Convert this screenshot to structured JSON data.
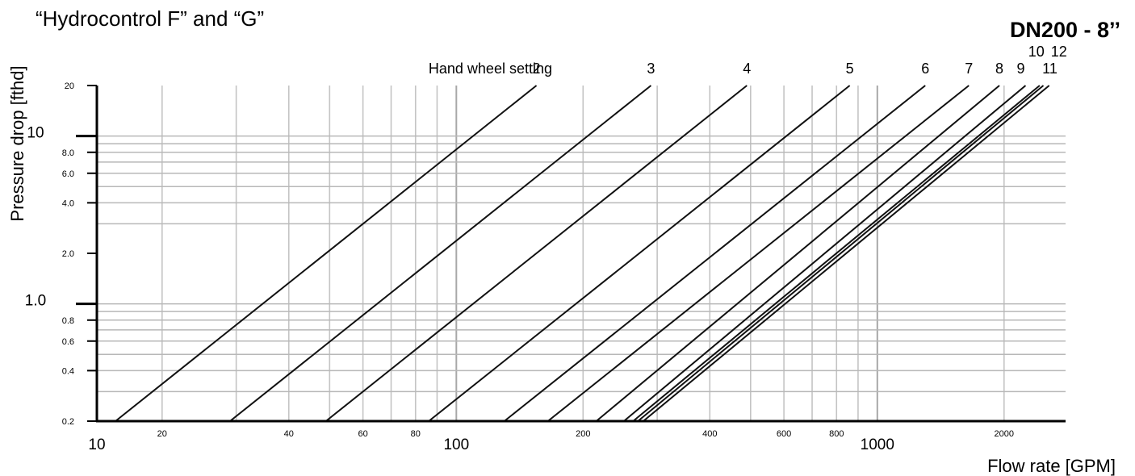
{
  "header": {
    "title": "“Hydrocontrol F” and “G”",
    "model": "DN200 - 8’’"
  },
  "chart_data": {
    "type": "line",
    "title": "“Hydrocontrol F” and “G”",
    "subtitle": "DN200 - 8’’",
    "xlabel": "Flow rate [GPM]",
    "ylabel": "Pressure drop [fthd]",
    "xscale": "log",
    "yscale": "log",
    "xlim": [
      14,
      2800
    ],
    "ylim": [
      0.2,
      20
    ],
    "grid": true,
    "x_ticks_major": [
      {
        "value": 10,
        "label": "10"
      },
      {
        "value": 100,
        "label": "100"
      },
      {
        "value": 1000,
        "label": "1000"
      }
    ],
    "x_ticks_minor": [
      {
        "value": 20,
        "label": "20"
      },
      {
        "value": 40,
        "label": "40"
      },
      {
        "value": 60,
        "label": "60"
      },
      {
        "value": 80,
        "label": "80"
      },
      {
        "value": 200,
        "label": "200"
      },
      {
        "value": 400,
        "label": "400"
      },
      {
        "value": 600,
        "label": "600"
      },
      {
        "value": 800,
        "label": "800"
      },
      {
        "value": 2000,
        "label": "2000"
      }
    ],
    "x_gridlines": [
      20,
      30,
      40,
      50,
      60,
      70,
      80,
      90,
      200,
      300,
      400,
      500,
      600,
      700,
      800,
      900,
      2000
    ],
    "y_ticks": [
      {
        "value": 20,
        "label": "20",
        "major": false
      },
      {
        "value": 10,
        "label": "10",
        "major": true
      },
      {
        "value": 8,
        "label": "8.0",
        "major": false
      },
      {
        "value": 6,
        "label": "6.0",
        "major": false
      },
      {
        "value": 4,
        "label": "4.0",
        "major": false
      },
      {
        "value": 2,
        "label": "2.0",
        "major": false
      },
      {
        "value": 1,
        "label": "1.0",
        "major": true
      },
      {
        "value": 0.8,
        "label": "0.8",
        "major": false
      },
      {
        "value": 0.6,
        "label": "0.6",
        "major": false
      },
      {
        "value": 0.4,
        "label": "0.4",
        "major": false
      },
      {
        "value": 0.2,
        "label": "0.2",
        "major": false
      }
    ],
    "y_gridlines": [
      10,
      9,
      8,
      7,
      6,
      5,
      4,
      3,
      1,
      0.9,
      0.8,
      0.7,
      0.6,
      0.5,
      0.4,
      0.3
    ],
    "series_label_title": "Hand wheel setting",
    "series": [
      {
        "name": "2",
        "x": [
          15.5,
          155
        ],
        "y": [
          0.2,
          20
        ]
      },
      {
        "name": "3",
        "x": [
          29,
          290
        ],
        "y": [
          0.2,
          20
        ]
      },
      {
        "name": "4",
        "x": [
          49,
          490
        ],
        "y": [
          0.2,
          20
        ]
      },
      {
        "name": "5",
        "x": [
          86,
          860
        ],
        "y": [
          0.2,
          20
        ]
      },
      {
        "name": "6",
        "x": [
          130,
          1300
        ],
        "y": [
          0.2,
          20
        ]
      },
      {
        "name": "7",
        "x": [
          165,
          1650
        ],
        "y": [
          0.2,
          20
        ]
      },
      {
        "name": "8",
        "x": [
          215,
          1950
        ],
        "y": [
          0.2,
          20
        ]
      },
      {
        "name": "9",
        "x": [
          250,
          2250
        ],
        "y": [
          0.2,
          20
        ]
      },
      {
        "name": "10",
        "x": [
          263,
          2430
        ],
        "y": [
          0.2,
          20
        ]
      },
      {
        "name": "11",
        "x": [
          270,
          2480
        ],
        "y": [
          0.2,
          20
        ]
      },
      {
        "name": "12",
        "x": [
          278,
          2560
        ],
        "y": [
          0.2,
          20
        ]
      }
    ]
  }
}
